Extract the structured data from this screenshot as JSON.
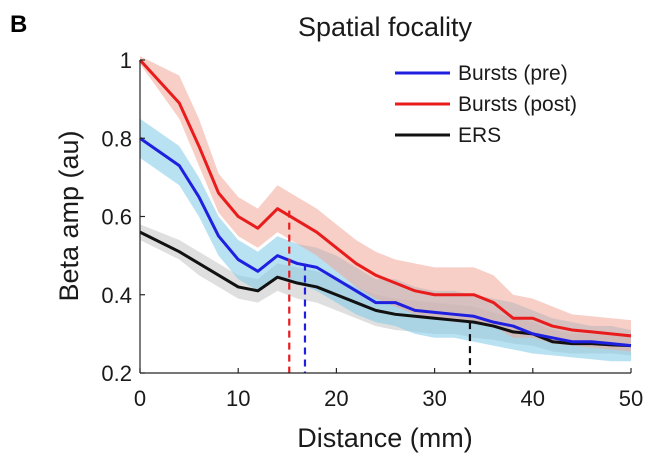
{
  "panel_label": "B",
  "chart_data": {
    "type": "line",
    "title": "Spatial focality",
    "xlabel": "Distance (mm)",
    "ylabel": "Beta amp (au)",
    "xlim": [
      0,
      50
    ],
    "ylim": [
      0.2,
      1.0
    ],
    "xticks": [
      0,
      10,
      20,
      30,
      40,
      50
    ],
    "xtick_labels": [
      "0",
      "10",
      "20",
      "30",
      "40",
      "50"
    ],
    "yticks": [
      0.2,
      0.4,
      0.6,
      0.8,
      1.0
    ],
    "ytick_labels": [
      "0.2",
      "0.4",
      "0.6",
      "0.8",
      "1"
    ],
    "grid": false,
    "legend_position": "top-right",
    "x": [
      0,
      4,
      6,
      8,
      10,
      12,
      14,
      16,
      18,
      20,
      22,
      24,
      26,
      28,
      30,
      32,
      34,
      36,
      38,
      40,
      42,
      44,
      46,
      48,
      50
    ],
    "series": [
      {
        "name": "Bursts (pre)",
        "color": "#1f1fe0",
        "band_color": "#7ec8e8",
        "values": [
          0.8,
          0.73,
          0.65,
          0.55,
          0.49,
          0.46,
          0.5,
          0.48,
          0.47,
          0.44,
          0.41,
          0.38,
          0.38,
          0.36,
          0.355,
          0.35,
          0.345,
          0.33,
          0.32,
          0.3,
          0.29,
          0.28,
          0.28,
          0.275,
          0.27
        ],
        "lower": [
          0.75,
          0.68,
          0.6,
          0.5,
          0.44,
          0.41,
          0.45,
          0.43,
          0.41,
          0.38,
          0.35,
          0.33,
          0.32,
          0.3,
          0.29,
          0.29,
          0.28,
          0.27,
          0.26,
          0.25,
          0.245,
          0.24,
          0.235,
          0.23,
          0.23
        ],
        "upper": [
          0.85,
          0.78,
          0.7,
          0.6,
          0.54,
          0.51,
          0.55,
          0.53,
          0.52,
          0.5,
          0.47,
          0.44,
          0.44,
          0.42,
          0.41,
          0.41,
          0.4,
          0.39,
          0.38,
          0.36,
          0.34,
          0.33,
          0.32,
          0.32,
          0.31
        ]
      },
      {
        "name": "Bursts (post)",
        "color": "#e81c1c",
        "band_color": "#f0a898",
        "values": [
          1.0,
          0.89,
          0.78,
          0.66,
          0.6,
          0.57,
          0.62,
          0.59,
          0.56,
          0.52,
          0.48,
          0.45,
          0.43,
          0.41,
          0.4,
          0.4,
          0.4,
          0.38,
          0.34,
          0.34,
          0.32,
          0.31,
          0.305,
          0.3,
          0.295
        ],
        "lower": [
          0.99,
          0.85,
          0.73,
          0.61,
          0.55,
          0.52,
          0.56,
          0.53,
          0.5,
          0.46,
          0.42,
          0.39,
          0.37,
          0.35,
          0.34,
          0.33,
          0.33,
          0.32,
          0.29,
          0.29,
          0.275,
          0.27,
          0.265,
          0.26,
          0.255
        ],
        "upper": [
          1.01,
          0.96,
          0.85,
          0.71,
          0.65,
          0.62,
          0.68,
          0.65,
          0.62,
          0.58,
          0.54,
          0.51,
          0.49,
          0.48,
          0.47,
          0.47,
          0.47,
          0.45,
          0.4,
          0.39,
          0.37,
          0.35,
          0.345,
          0.34,
          0.335
        ]
      },
      {
        "name": "ERS",
        "color": "#111111",
        "band_color": "#c4c4c4",
        "values": [
          0.56,
          0.51,
          0.48,
          0.45,
          0.42,
          0.41,
          0.445,
          0.43,
          0.42,
          0.4,
          0.38,
          0.36,
          0.35,
          0.345,
          0.34,
          0.335,
          0.33,
          0.32,
          0.305,
          0.3,
          0.28,
          0.275,
          0.275,
          0.272,
          0.27
        ],
        "lower": [
          0.54,
          0.49,
          0.45,
          0.42,
          0.39,
          0.38,
          0.41,
          0.39,
          0.38,
          0.36,
          0.34,
          0.32,
          0.31,
          0.305,
          0.3,
          0.3,
          0.29,
          0.285,
          0.275,
          0.27,
          0.255,
          0.25,
          0.25,
          0.25,
          0.245
        ],
        "upper": [
          0.58,
          0.54,
          0.51,
          0.48,
          0.45,
          0.44,
          0.48,
          0.47,
          0.46,
          0.44,
          0.42,
          0.4,
          0.39,
          0.385,
          0.38,
          0.375,
          0.37,
          0.355,
          0.34,
          0.33,
          0.31,
          0.3,
          0.3,
          0.295,
          0.295
        ]
      }
    ],
    "markers": [
      {
        "series": "Bursts (post)",
        "x": 15.2,
        "y": 0.615,
        "color": "#e81c1c",
        "style": "dashed"
      },
      {
        "series": "Bursts (pre)",
        "x": 16.8,
        "y": 0.48,
        "color": "#1f1fe0",
        "style": "dashed"
      },
      {
        "series": "ERS",
        "x": 33.6,
        "y": 0.33,
        "color": "#111111",
        "style": "dashed"
      }
    ]
  }
}
